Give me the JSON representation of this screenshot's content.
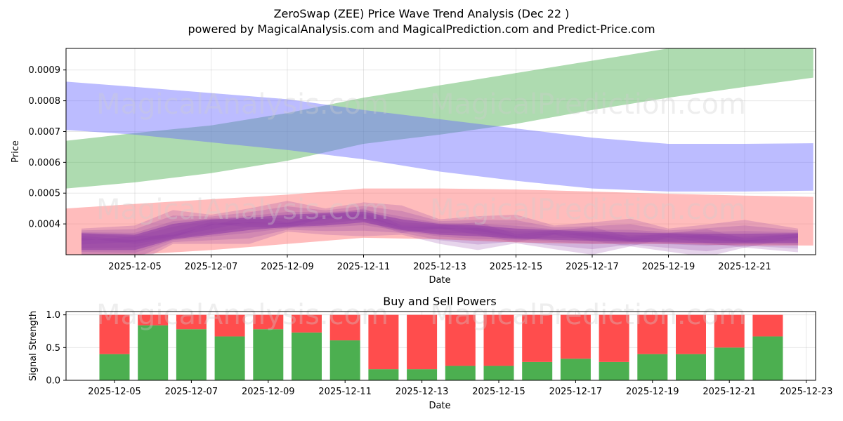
{
  "title_line1": "ZeroSwap (ZEE) Price Wave Trend Analysis (Dec 22 )",
  "title_line2": "powered by MagicalAnalysis.com and MagicalPrediction.com and Predict-Price.com",
  "watermark_left": "MagicalAnalysis.com",
  "watermark_right": "MagicalPrediction.com",
  "colors": {
    "green": "#4caf50",
    "blue": "#6b6bff",
    "red": "#ff6b6b",
    "purple": "#8e3aa6",
    "buy": "#4caf50",
    "sell": "#ff4d4d"
  },
  "chart_data": [
    {
      "type": "area",
      "title": "ZeroSwap (ZEE) Price Wave Trend Analysis (Dec 22 )",
      "xlabel": "Date",
      "ylabel": "Price",
      "xlim": [
        "2025-12-03",
        "2025-12-23"
      ],
      "ylim": [
        0.0003,
        0.00097
      ],
      "yticks": [
        "0.0004",
        "0.0005",
        "0.0006",
        "0.0007",
        "0.0008",
        "0.0009"
      ],
      "ytick_values": [
        0.0004,
        0.0005,
        0.0006,
        0.0007,
        0.0008,
        0.0009
      ],
      "xticks": [
        "2025-12-05",
        "2025-12-07",
        "2025-12-09",
        "2025-12-11",
        "2025-12-13",
        "2025-12-15",
        "2025-12-17",
        "2025-12-19",
        "2025-12-21"
      ],
      "grid": true,
      "bands": [
        {
          "name": "green-wave",
          "color": "green",
          "x": [
            3.2,
            5,
            7,
            9,
            11,
            13,
            15,
            17,
            19,
            21,
            22.8
          ],
          "lower": [
            0.000515,
            0.000535,
            0.000565,
            0.000605,
            0.00066,
            0.00069,
            0.000725,
            0.00077,
            0.00081,
            0.000845,
            0.000875
          ],
          "upper": [
            0.00067,
            0.000695,
            0.00072,
            0.00076,
            0.00081,
            0.00085,
            0.00089,
            0.00093,
            0.00097,
            0.00099,
            0.00097
          ]
        },
        {
          "name": "blue-wave",
          "color": "blue",
          "x": [
            3.2,
            5,
            7,
            9,
            11,
            13,
            15,
            17,
            19,
            21,
            22.8
          ],
          "lower": [
            0.000705,
            0.00069,
            0.000665,
            0.00064,
            0.00061,
            0.00057,
            0.00054,
            0.000515,
            0.000505,
            0.000505,
            0.000508
          ],
          "upper": [
            0.000862,
            0.000845,
            0.000825,
            0.000805,
            0.00077,
            0.00074,
            0.00071,
            0.00068,
            0.00066,
            0.00066,
            0.000662
          ]
        },
        {
          "name": "red-wave",
          "color": "red",
          "x": [
            3.2,
            5,
            7,
            9,
            11,
            13,
            15,
            17,
            19,
            21,
            22.8
          ],
          "lower": [
            0.0003,
            0.0003,
            0.000315,
            0.000335,
            0.000355,
            0.00035,
            0.00034,
            0.000335,
            0.000335,
            0.00033,
            0.00033
          ],
          "upper": [
            0.00045,
            0.000465,
            0.00048,
            0.000495,
            0.000515,
            0.000515,
            0.000512,
            0.000505,
            0.000498,
            0.000492,
            0.000488
          ]
        },
        {
          "name": "purple-wave",
          "color": "purple",
          "x": [
            3.6,
            5,
            6,
            7,
            8,
            9,
            10,
            11,
            12,
            13,
            14,
            15,
            16,
            17,
            18,
            19,
            20,
            21,
            22.4
          ],
          "lower": [
            0.000315,
            0.000315,
            0.00035,
            0.000365,
            0.00038,
            0.00039,
            0.000395,
            0.000405,
            0.00038,
            0.000365,
            0.00036,
            0.000352,
            0.000348,
            0.000345,
            0.000342,
            0.00034,
            0.000338,
            0.000338,
            0.000338
          ],
          "upper": [
            0.00037,
            0.000365,
            0.0004,
            0.000415,
            0.00042,
            0.00043,
            0.000435,
            0.00044,
            0.000415,
            0.0004,
            0.000395,
            0.000385,
            0.00038,
            0.000375,
            0.000372,
            0.00037,
            0.000368,
            0.000368,
            0.00037
          ]
        }
      ]
    },
    {
      "type": "bar",
      "title": "Buy and Sell Powers",
      "xlabel": "Date",
      "ylabel": "Signal Strength",
      "ylim": [
        0,
        1.05
      ],
      "yticks": [
        "0.0",
        "0.5",
        "1.0"
      ],
      "ytick_values": [
        0,
        0.5,
        1.0
      ],
      "xticks": [
        "2025-12-05",
        "2025-12-07",
        "2025-12-09",
        "2025-12-11",
        "2025-12-13",
        "2025-12-15",
        "2025-12-17",
        "2025-12-19",
        "2025-12-21",
        "2025-12-23"
      ],
      "categories": [
        "2025-12-05",
        "2025-12-06",
        "2025-12-07",
        "2025-12-08",
        "2025-12-09",
        "2025-12-10",
        "2025-12-11",
        "2025-12-12",
        "2025-12-13",
        "2025-12-14",
        "2025-12-15",
        "2025-12-16",
        "2025-12-17",
        "2025-12-18",
        "2025-12-19",
        "2025-12-20",
        "2025-12-21",
        "2025-12-22"
      ],
      "series": [
        {
          "name": "Buy",
          "color": "buy",
          "values": [
            0.4,
            0.84,
            0.78,
            0.67,
            0.78,
            0.73,
            0.61,
            0.17,
            0.17,
            0.22,
            0.22,
            0.28,
            0.33,
            0.28,
            0.4,
            0.4,
            0.5,
            0.67
          ]
        },
        {
          "name": "Sell",
          "color": "sell",
          "values": [
            0.6,
            0.16,
            0.22,
            0.33,
            0.22,
            0.27,
            0.39,
            0.83,
            0.83,
            0.78,
            0.78,
            0.72,
            0.67,
            0.72,
            0.6,
            0.6,
            0.5,
            0.33
          ]
        }
      ]
    }
  ]
}
